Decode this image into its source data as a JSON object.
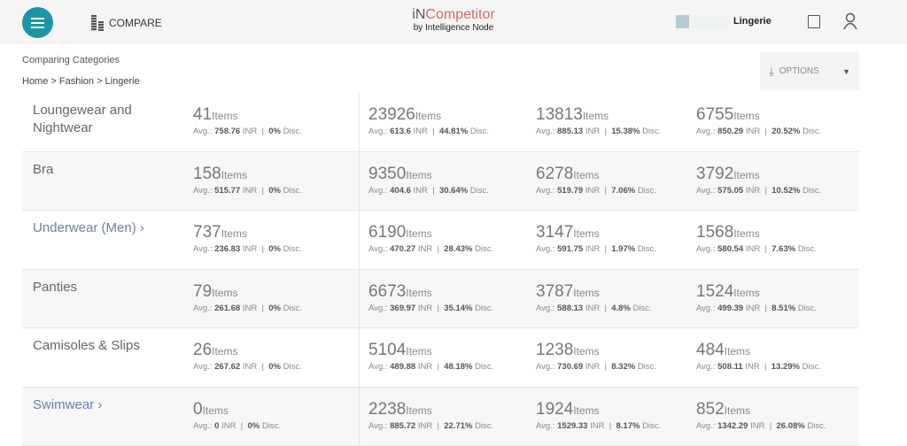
{
  "header": {
    "compare_label": "COMPARE",
    "brand_prefix": "iN",
    "brand_main": "Competitor",
    "brand_sub": "by Intelligence Node",
    "category": "Lingerie"
  },
  "page": {
    "title": "Comparing Categories",
    "breadcrumb": "Home > Fashion > Lingerie",
    "options_label": "OPTIONS"
  },
  "labels": {
    "items": "Items",
    "avg": "Avg.:",
    "inr": "INR",
    "disc": "Disc."
  },
  "rows": [
    {
      "name": "Loungewear and Nightwear",
      "link": false,
      "cells": [
        {
          "count": "41",
          "avg": "758.76",
          "disc": "0%"
        },
        {
          "count": "23926",
          "avg": "613.6",
          "disc": "44.81%"
        },
        {
          "count": "13813",
          "avg": "885.13",
          "disc": "15.38%"
        },
        {
          "count": "6755",
          "avg": "850.29",
          "disc": "20.52%"
        }
      ]
    },
    {
      "name": "Bra",
      "link": false,
      "cells": [
        {
          "count": "158",
          "avg": "515.77",
          "disc": "0%"
        },
        {
          "count": "9350",
          "avg": "404.6",
          "disc": "30.64%"
        },
        {
          "count": "6278",
          "avg": "519.79",
          "disc": "7.06%"
        },
        {
          "count": "3792",
          "avg": "575.05",
          "disc": "10.52%"
        }
      ]
    },
    {
      "name": "Underwear (Men) ›",
      "link": true,
      "cells": [
        {
          "count": "737",
          "avg": "236.83",
          "disc": "0%"
        },
        {
          "count": "6190",
          "avg": "470.27",
          "disc": "28.43%"
        },
        {
          "count": "3147",
          "avg": "591.75",
          "disc": "1.97%"
        },
        {
          "count": "1568",
          "avg": "580.54",
          "disc": "7.63%"
        }
      ]
    },
    {
      "name": "Panties",
      "link": false,
      "cells": [
        {
          "count": "79",
          "avg": "261.68",
          "disc": "0%"
        },
        {
          "count": "6673",
          "avg": "369.97",
          "disc": "35.14%"
        },
        {
          "count": "3787",
          "avg": "588.13",
          "disc": "4.8%"
        },
        {
          "count": "1524",
          "avg": "499.39",
          "disc": "8.51%"
        }
      ]
    },
    {
      "name": "Camisoles & Slips",
      "link": false,
      "cells": [
        {
          "count": "26",
          "avg": "267.62",
          "disc": "0%"
        },
        {
          "count": "5104",
          "avg": "489.88",
          "disc": "48.18%"
        },
        {
          "count": "1238",
          "avg": "730.69",
          "disc": "8.32%"
        },
        {
          "count": "484",
          "avg": "508.11",
          "disc": "13.29%"
        }
      ]
    },
    {
      "name": "Swimwear ›",
      "link": true,
      "cells": [
        {
          "count": "0",
          "avg": "0",
          "disc": "0%"
        },
        {
          "count": "2238",
          "avg": "885.72",
          "disc": "22.71%"
        },
        {
          "count": "1924",
          "avg": "1529.33",
          "disc": "8.17%"
        },
        {
          "count": "852",
          "avg": "1342.29",
          "disc": "26.08%"
        }
      ]
    }
  ],
  "colors": {
    "accent": "#1a96a5",
    "brand": "#d06a6a",
    "link": "#6b7fa8"
  }
}
